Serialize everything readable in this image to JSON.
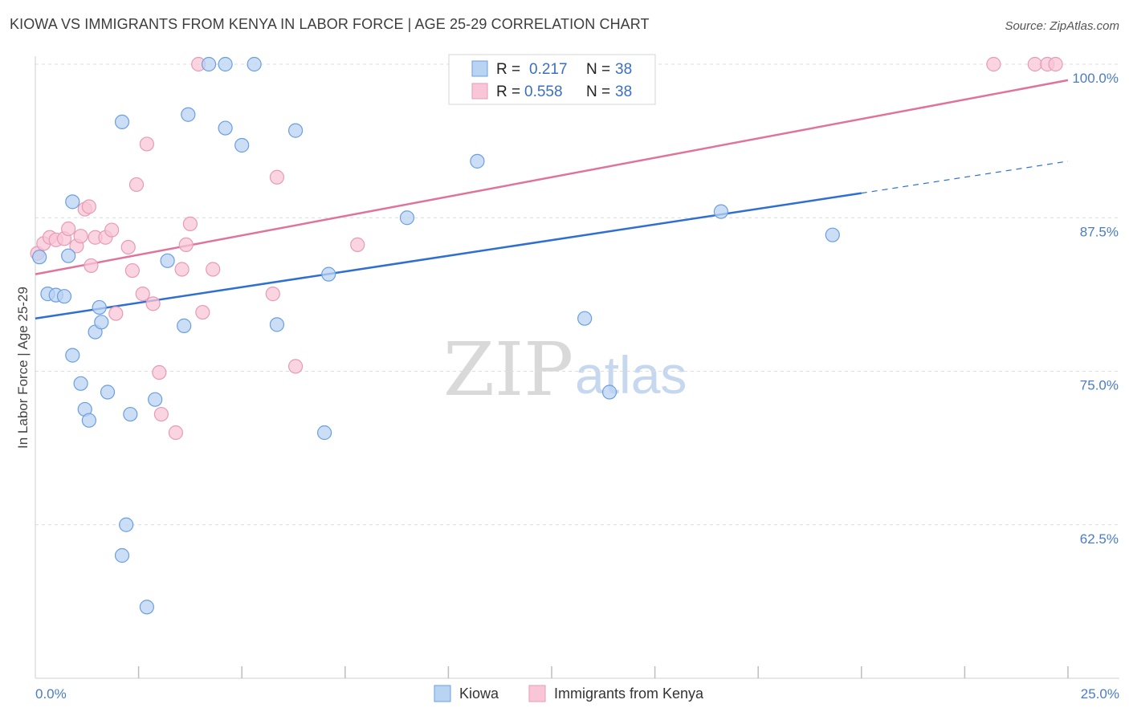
{
  "title": "KIOWA VS IMMIGRANTS FROM KENYA IN LABOR FORCE | AGE 25-29 CORRELATION CHART",
  "source": "Source: ZipAtlas.com",
  "watermark": {
    "zip": "ZIP",
    "atlas": "atlas"
  },
  "chart_data": {
    "type": "scatter",
    "title": "KIOWA VS IMMIGRANTS FROM KENYA IN LABOR FORCE | AGE 25-29 CORRELATION CHART",
    "xlabel": "",
    "ylabel": "In Labor Force | Age 25-29",
    "xlim": [
      0,
      25
    ],
    "ylim": [
      50,
      100
    ],
    "x_tick_labels": {
      "left": "0.0%",
      "right": "25.0%"
    },
    "y_ticks": [
      {
        "value": 100,
        "label": "100.0%"
      },
      {
        "value": 87.5,
        "label": "87.5%"
      },
      {
        "value": 75,
        "label": "75.0%"
      },
      {
        "value": 62.5,
        "label": "62.5%"
      }
    ],
    "legend": [
      {
        "r_label": "R =",
        "r_value": "0.217",
        "n_label": "N =",
        "n_value": "38"
      },
      {
        "r_label": "R =",
        "r_value": "0.558",
        "n_label": "N =",
        "n_value": "38"
      }
    ],
    "series": [
      {
        "name": "Kiowa",
        "color": "#6a9fe0",
        "fill": "#b9d3f3",
        "line_color": "#2e6fd1",
        "trend": {
          "x0": 0,
          "y0": 79.3,
          "x1": 20,
          "y1": 89.5,
          "dash_to_x": 25,
          "dash_to_y": 92.1
        },
        "points": [
          [
            0.1,
            84.3
          ],
          [
            0.3,
            81.3
          ],
          [
            0.5,
            81.2
          ],
          [
            0.7,
            81.1
          ],
          [
            0.8,
            84.4
          ],
          [
            0.9,
            88.8
          ],
          [
            0.9,
            76.3
          ],
          [
            1.1,
            74.0
          ],
          [
            1.2,
            71.9
          ],
          [
            1.3,
            71.0
          ],
          [
            1.45,
            78.2
          ],
          [
            1.55,
            80.2
          ],
          [
            1.6,
            79.0
          ],
          [
            1.75,
            73.3
          ],
          [
            2.1,
            60.0
          ],
          [
            2.1,
            95.3
          ],
          [
            2.2,
            62.5
          ],
          [
            2.3,
            71.5
          ],
          [
            2.7,
            55.8
          ],
          [
            2.9,
            72.7
          ],
          [
            3.2,
            84.0
          ],
          [
            3.6,
            78.7
          ],
          [
            3.7,
            95.9
          ],
          [
            4.2,
            100.0
          ],
          [
            4.6,
            100.0
          ],
          [
            4.6,
            94.8
          ],
          [
            5.0,
            93.4
          ],
          [
            5.3,
            100.0
          ],
          [
            5.85,
            78.8
          ],
          [
            6.3,
            94.6
          ],
          [
            7.0,
            70.0
          ],
          [
            7.1,
            82.9
          ],
          [
            9.0,
            87.5
          ],
          [
            10.7,
            92.1
          ],
          [
            13.3,
            79.3
          ],
          [
            13.9,
            73.3
          ],
          [
            16.6,
            88.0
          ],
          [
            19.3,
            86.1
          ]
        ]
      },
      {
        "name": "Immigrants from Kenya",
        "color": "#e79bb6",
        "fill": "#f8c6d6",
        "line_color": "#e0739a",
        "trend": {
          "x0": 0,
          "y0": 82.9,
          "x1": 25,
          "y1": 98.7
        },
        "points": [
          [
            0.05,
            84.6
          ],
          [
            0.2,
            85.4
          ],
          [
            0.35,
            85.9
          ],
          [
            0.5,
            85.7
          ],
          [
            0.7,
            85.8
          ],
          [
            0.8,
            86.6
          ],
          [
            1.0,
            85.2
          ],
          [
            1.1,
            86.0
          ],
          [
            1.2,
            88.2
          ],
          [
            1.3,
            88.4
          ],
          [
            1.35,
            83.6
          ],
          [
            1.45,
            85.9
          ],
          [
            1.7,
            85.9
          ],
          [
            1.85,
            86.5
          ],
          [
            1.95,
            79.7
          ],
          [
            2.25,
            85.1
          ],
          [
            2.35,
            83.2
          ],
          [
            2.45,
            90.2
          ],
          [
            2.6,
            81.3
          ],
          [
            2.7,
            93.5
          ],
          [
            2.85,
            80.5
          ],
          [
            3.0,
            74.9
          ],
          [
            3.05,
            71.5
          ],
          [
            3.4,
            70.0
          ],
          [
            3.55,
            83.3
          ],
          [
            3.65,
            85.3
          ],
          [
            3.75,
            87.0
          ],
          [
            3.95,
            100.0
          ],
          [
            4.05,
            79.8
          ],
          [
            4.3,
            83.3
          ],
          [
            5.75,
            81.3
          ],
          [
            5.85,
            90.8
          ],
          [
            6.3,
            75.4
          ],
          [
            7.8,
            85.3
          ],
          [
            23.2,
            100.0
          ],
          [
            24.2,
            100.0
          ],
          [
            24.5,
            100.0
          ],
          [
            24.7,
            100.0
          ]
        ]
      }
    ]
  }
}
